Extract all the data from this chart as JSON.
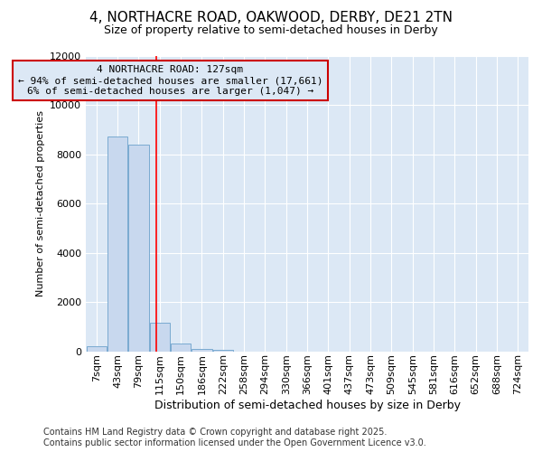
{
  "title_line1": "4, NORTHACRE ROAD, OAKWOOD, DERBY, DE21 2TN",
  "title_line2": "Size of property relative to semi-detached houses in Derby",
  "xlabel": "Distribution of semi-detached houses by size in Derby",
  "ylabel": "Number of semi-detached properties",
  "footer_line1": "Contains HM Land Registry data © Crown copyright and database right 2025.",
  "footer_line2": "Contains public sector information licensed under the Open Government Licence v3.0.",
  "categories": [
    "7sqm",
    "43sqm",
    "79sqm",
    "115sqm",
    "150sqm",
    "186sqm",
    "222sqm",
    "258sqm",
    "294sqm",
    "330sqm",
    "366sqm",
    "401sqm",
    "437sqm",
    "473sqm",
    "509sqm",
    "545sqm",
    "581sqm",
    "616sqm",
    "652sqm",
    "688sqm",
    "724sqm"
  ],
  "values": [
    200,
    8700,
    8400,
    1150,
    330,
    100,
    50,
    0,
    0,
    0,
    0,
    0,
    0,
    0,
    0,
    0,
    0,
    0,
    0,
    0,
    0
  ],
  "bar_color": "#c8d8ee",
  "bar_edge_color": "#7aaad0",
  "figure_bg": "#ffffff",
  "axes_bg": "#dce8f5",
  "grid_color": "#ffffff",
  "annotation_box_edgecolor": "#cc0000",
  "annotation_text_line1": "4 NORTHACRE ROAD: 127sqm",
  "annotation_text_line2": "← 94% of semi-detached houses are smaller (17,661)",
  "annotation_text_line3": "6% of semi-detached houses are larger (1,047) →",
  "property_line_x": 2.82,
  "ylim": [
    0,
    12000
  ],
  "yticks": [
    0,
    2000,
    4000,
    6000,
    8000,
    10000,
    12000
  ],
  "title_fontsize": 11,
  "subtitle_fontsize": 9,
  "ylabel_fontsize": 8,
  "xlabel_fontsize": 9,
  "tick_fontsize": 8,
  "footer_fontsize": 7
}
